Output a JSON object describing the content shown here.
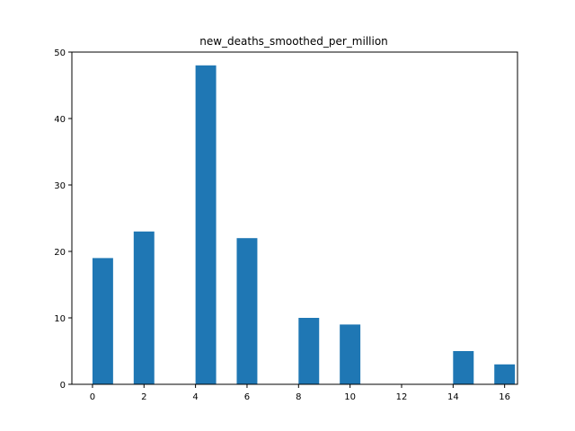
{
  "chart_data": {
    "type": "bar",
    "title": "new_deaths_smoothed_per_million",
    "xlabel": "",
    "ylabel": "",
    "xlim": [
      -0.8,
      16.5
    ],
    "ylim": [
      0,
      50
    ],
    "xticks": [
      0,
      2,
      4,
      6,
      8,
      10,
      12,
      14,
      16
    ],
    "yticks": [
      0,
      10,
      20,
      30,
      40,
      50
    ],
    "bar_width": 0.8,
    "grid": false,
    "color": "#1f77b4",
    "bars": [
      {
        "x": 0.4,
        "value": 19
      },
      {
        "x": 2.0,
        "value": 23
      },
      {
        "x": 4.4,
        "value": 48
      },
      {
        "x": 6.0,
        "value": 22
      },
      {
        "x": 8.4,
        "value": 10
      },
      {
        "x": 10.0,
        "value": 9
      },
      {
        "x": 14.4,
        "value": 5
      },
      {
        "x": 16.0,
        "value": 3
      }
    ]
  }
}
